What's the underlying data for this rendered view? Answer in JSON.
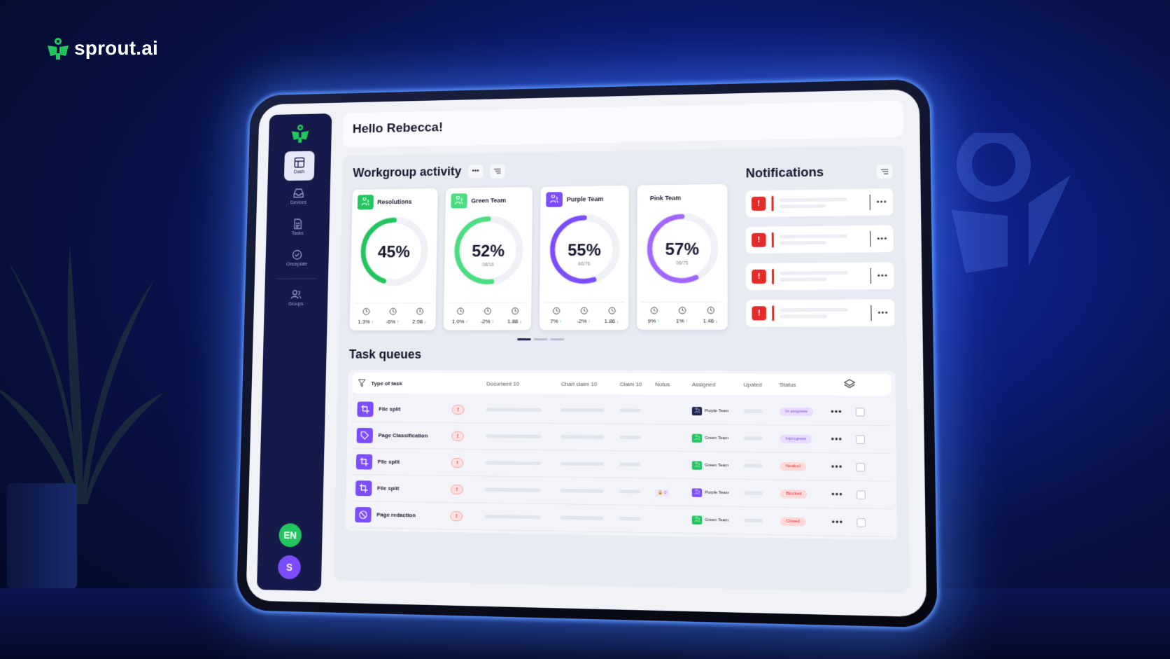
{
  "brand": {
    "name": "sprout.ai"
  },
  "colors": {
    "green": "#22c55e",
    "purple": "#7c4dff",
    "navy": "#151a4a",
    "red": "#e52a2a"
  },
  "sidebar": {
    "items": [
      {
        "label": "Dash",
        "icon": "layout-icon",
        "active": true
      },
      {
        "label": "Devices",
        "icon": "inbox-icon"
      },
      {
        "label": "Tasks",
        "icon": "document-icon"
      },
      {
        "label": "Onceplate",
        "icon": "check-circle-icon"
      },
      {
        "label": "Groups",
        "icon": "users-icon"
      }
    ],
    "lang": "EN",
    "user_initial": "S"
  },
  "header": {
    "greeting": "Hello Rebecca!"
  },
  "workgroup": {
    "title": "Workgroup activity",
    "cards": [
      {
        "name": "Resolutions",
        "value": "45%",
        "progress": 0.45,
        "sub": "",
        "color": "#22c55e",
        "stats": [
          {
            "v": "1.3%",
            "d": "up"
          },
          {
            "v": "-6%",
            "d": "up"
          },
          {
            "v": "2.08",
            "d": "down"
          }
        ]
      },
      {
        "name": "Green Team",
        "value": "52%",
        "progress": 0.52,
        "sub": "08/16",
        "color": "#4ade80",
        "stats": [
          {
            "v": "1.0%",
            "d": "up"
          },
          {
            "v": "-2%",
            "d": "up"
          },
          {
            "v": "1.88",
            "d": "down"
          }
        ]
      },
      {
        "name": "Purple Team",
        "value": "55%",
        "progress": 0.55,
        "sub": "86/76",
        "color": "#7c4dff",
        "stats": [
          {
            "v": "7%",
            "d": "up"
          },
          {
            "v": "-2%",
            "d": "up"
          },
          {
            "v": "1.86",
            "d": "down"
          }
        ]
      },
      {
        "name": "Pink Team",
        "value": "57%",
        "progress": 0.57,
        "sub": "06/75",
        "color": "#a066ff",
        "stats": [
          {
            "v": "9%",
            "d": "up"
          },
          {
            "v": "1%",
            "d": "up"
          },
          {
            "v": "1.46",
            "d": "down"
          }
        ]
      }
    ]
  },
  "notifications": {
    "title": "Notifications",
    "count": 4
  },
  "tasks": {
    "title": "Task queues",
    "columns": [
      "Type of task",
      "Document 10",
      "Chart claim 10",
      "Claim 10",
      "Notus",
      "Assigned",
      "Upated",
      "Status"
    ],
    "rows": [
      {
        "type": "File split",
        "icon": "crop-icon",
        "assigned": "Purple Team",
        "assigned_color": "#1f2350",
        "status": "In progress",
        "status_kind": "purple",
        "extra": ""
      },
      {
        "type": "Page Classification",
        "icon": "tag-icon",
        "assigned": "Green Team",
        "assigned_color": "#22c55e",
        "status": "Inprogress",
        "status_kind": "purple",
        "extra": ""
      },
      {
        "type": "File split",
        "icon": "crop-icon",
        "assigned": "Green Team",
        "assigned_color": "#22c55e",
        "status": "Nealcel",
        "status_kind": "red",
        "extra": ""
      },
      {
        "type": "File split",
        "icon": "crop-icon",
        "assigned": "Purple Team",
        "assigned_color": "#7c4dff",
        "status": "Blocked",
        "status_kind": "red",
        "extra": "0"
      },
      {
        "type": "Page redaction",
        "icon": "slash-circle-icon",
        "assigned": "Green Team",
        "assigned_color": "#22c55e",
        "status": "Closed",
        "status_kind": "red",
        "extra": ""
      }
    ]
  }
}
